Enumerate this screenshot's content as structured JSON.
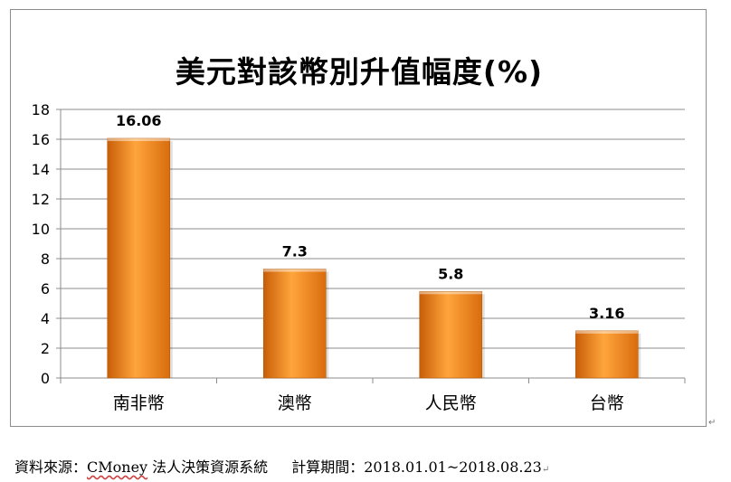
{
  "chart_data": {
    "type": "bar",
    "title": "美元對該幣別升值幅度(%)",
    "categories": [
      "南非幣",
      "澳幣",
      "人民幣",
      "台幣"
    ],
    "values": [
      16.06,
      7.3,
      5.8,
      3.16
    ],
    "value_labels": [
      "16.06",
      "7.3",
      "5.8",
      "3.16"
    ],
    "ylim": [
      0,
      18
    ],
    "yticks": [
      0,
      2,
      4,
      6,
      8,
      10,
      12,
      14,
      16,
      18
    ],
    "grid": true,
    "bar_color": "#f08a1c",
    "legend": "none"
  },
  "footnote": {
    "source_label": "資料來源：",
    "source_brand": "CMoney",
    "source_system": " 法人決策資源系統",
    "period_label": "計算期間：",
    "period_value": "2018.01.01~2018.08.23",
    "return_mark": "↵"
  }
}
